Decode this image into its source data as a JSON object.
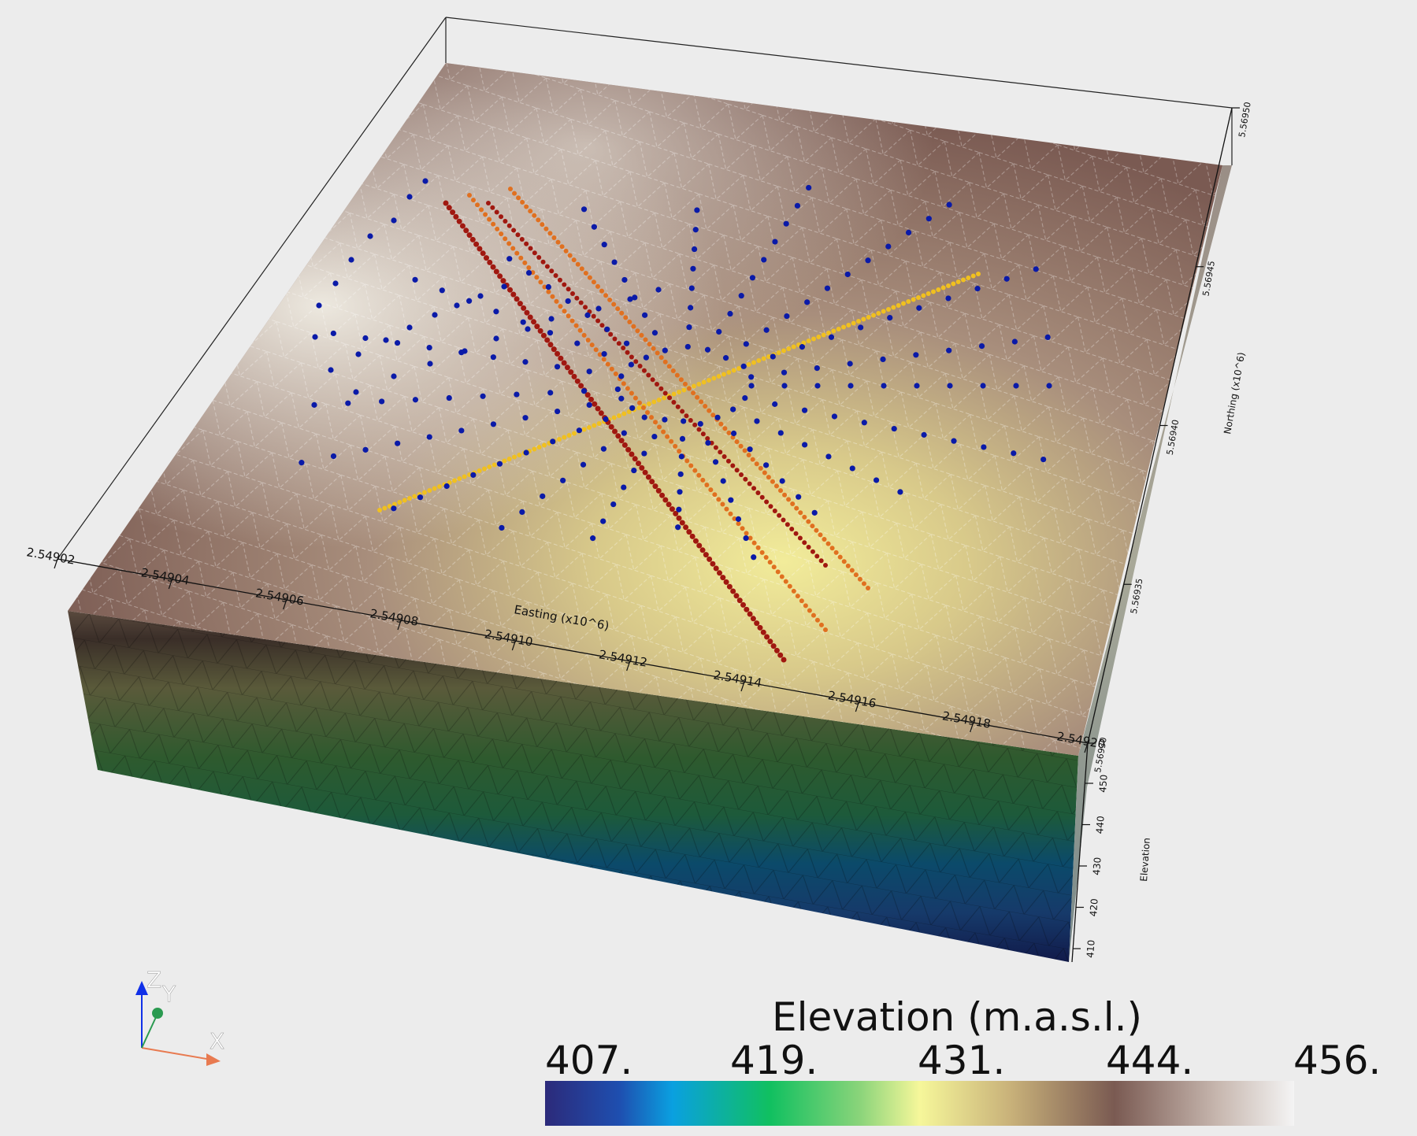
{
  "scene": {
    "easting_axis": {
      "title": "Easting (x10^6)",
      "ticks": [
        "2.54902",
        "2.54904",
        "2.54906",
        "2.54908",
        "2.54910",
        "2.54912",
        "2.54914",
        "2.54916",
        "2.54918",
        "2.54920"
      ]
    },
    "northing_axis": {
      "title": "Northing (x10^6)",
      "ticks": [
        "5.56930",
        "5.56935",
        "5.56940",
        "5.56945",
        "5.56950"
      ]
    },
    "elevation_axis": {
      "title": "Elevation",
      "ticks": [
        "410",
        "420",
        "430",
        "440",
        "450"
      ]
    }
  },
  "orientation_widget": {
    "x_label": "X",
    "y_label": "Y",
    "z_label": "Z"
  },
  "legend": {
    "title": "Elevation (m.a.s.l.)",
    "ticks": [
      "407.",
      "419.",
      "431.",
      "444.",
      "456."
    ],
    "colors": [
      "#2c2a7a",
      "#1e4fb0",
      "#0aa0e0",
      "#10c060",
      "#8ad47a",
      "#f6f79a",
      "#c9b27a",
      "#7a5a52",
      "#c8b8b0",
      "#f4f4f4"
    ]
  },
  "colors": {
    "background": "#ececec",
    "points_blue": "#0a1aa8",
    "line_yellow": "#f0c020",
    "line_orange": "#e07020",
    "line_red": "#a01810"
  }
}
